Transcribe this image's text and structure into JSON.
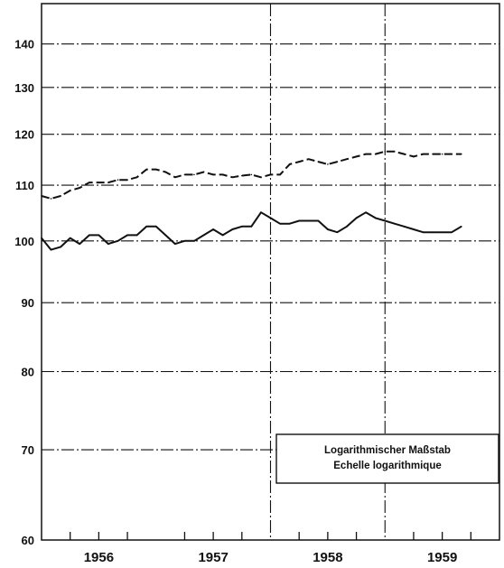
{
  "chart_data": {
    "type": "line",
    "scale": "log",
    "ylim": [
      60,
      150
    ],
    "yticks": [
      60,
      70,
      80,
      90,
      100,
      110,
      120,
      130,
      140
    ],
    "ytick_labels": [
      "60",
      "70",
      "80",
      "90",
      "100",
      "110",
      "120",
      "130",
      "140"
    ],
    "xlim": [
      1955.5,
      1959.5
    ],
    "year_labels": [
      "1956",
      "1957",
      "1958",
      "1959"
    ],
    "grid": true,
    "note_line1": "Logarithmischer Maßstab",
    "note_line2": "Echelle logarithmique",
    "series": [
      {
        "style": "dashed",
        "x": [
          1955.5,
          1955.583,
          1955.667,
          1955.75,
          1955.833,
          1955.917,
          1956.0,
          1956.083,
          1956.167,
          1956.25,
          1956.333,
          1956.417,
          1956.5,
          1956.583,
          1956.667,
          1956.75,
          1956.833,
          1956.917,
          1957.0,
          1957.083,
          1957.167,
          1957.25,
          1957.333,
          1957.417,
          1957.5,
          1957.583,
          1957.667,
          1957.75,
          1957.833,
          1957.917,
          1958.0,
          1958.083,
          1958.167,
          1958.25,
          1958.333,
          1958.417,
          1958.5,
          1958.583,
          1958.667,
          1958.75,
          1958.833,
          1958.917,
          1959.0,
          1959.083,
          1959.167
        ],
        "y": [
          108,
          107.5,
          108,
          109,
          109.5,
          110.5,
          110.5,
          110.5,
          111,
          111,
          111.5,
          113,
          113,
          112.5,
          111.5,
          112,
          112,
          112.5,
          112,
          112,
          111.5,
          111.8,
          112,
          111.5,
          112,
          112,
          114,
          114.5,
          115,
          114.5,
          114,
          114.5,
          115,
          115.5,
          116,
          116,
          116.5,
          116.5,
          116,
          115.5,
          116,
          116,
          116,
          116,
          116
        ]
      },
      {
        "style": "solid",
        "x": [
          1955.5,
          1955.583,
          1955.667,
          1955.75,
          1955.833,
          1955.917,
          1956.0,
          1956.083,
          1956.167,
          1956.25,
          1956.333,
          1956.417,
          1956.5,
          1956.583,
          1956.667,
          1956.75,
          1956.833,
          1956.917,
          1957.0,
          1957.083,
          1957.167,
          1957.25,
          1957.333,
          1957.417,
          1957.5,
          1957.583,
          1957.667,
          1957.75,
          1957.833,
          1957.917,
          1958.0,
          1958.083,
          1958.167,
          1958.25,
          1958.333,
          1958.417,
          1958.5,
          1958.583,
          1958.667,
          1958.75,
          1958.833,
          1958.917,
          1959.0,
          1959.083,
          1959.167
        ],
        "y": [
          100.5,
          98.5,
          99,
          100.5,
          99.5,
          101,
          101,
          99.5,
          100,
          101,
          101,
          102.5,
          102.5,
          101,
          99.5,
          100,
          100,
          101,
          102,
          101,
          102,
          102.5,
          102.5,
          105,
          104,
          103,
          103,
          103.5,
          103.5,
          103.5,
          102,
          101.5,
          102.5,
          104,
          105,
          104,
          103.5,
          103,
          102.5,
          102,
          101.5,
          101.5,
          101.5,
          101.5,
          102.5
        ]
      }
    ]
  }
}
